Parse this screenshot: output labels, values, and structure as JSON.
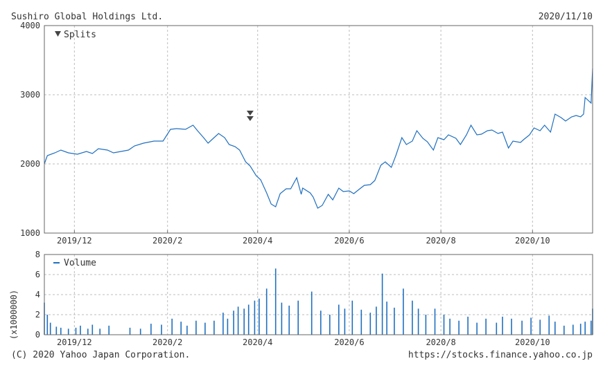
{
  "header": {
    "company": "Sushiro Global Holdings Ltd.",
    "date": "2020/11/10"
  },
  "footer": {
    "copyright": "(C) 2020 Yahoo Japan Corporation.",
    "url": "https://stocks.finance.yahoo.co.jp"
  },
  "colors": {
    "line": "#1f6fbf",
    "volume": "#1f6fbf",
    "marker": "#444444"
  },
  "chart_data": [
    {
      "type": "line",
      "x_type": "date",
      "x_range": [
        "2019-11-11",
        "2020-11-10"
      ],
      "ylim": [
        1000,
        4000
      ],
      "yticks": [
        1000,
        2000,
        3000,
        4000
      ],
      "xticks": [
        {
          "date": "2019-12-01",
          "label": "2019/12"
        },
        {
          "date": "2020-02-01",
          "label": "2020/2"
        },
        {
          "date": "2020-04-01",
          "label": "2020/4"
        },
        {
          "date": "2020-06-01",
          "label": "2020/6"
        },
        {
          "date": "2020-08-01",
          "label": "2020/8"
        },
        {
          "date": "2020-10-01",
          "label": "2020/10"
        }
      ],
      "grid": true,
      "legend": {
        "label": "Splits",
        "placement": "top-left",
        "symbol": "down-triangle"
      },
      "splits": [
        "2020-03-27"
      ],
      "series": [
        {
          "points": [
            [
              "2019-11-11",
              2000
            ],
            [
              "2019-11-13",
              2120
            ],
            [
              "2019-11-18",
              2160
            ],
            [
              "2019-11-22",
              2200
            ],
            [
              "2019-11-27",
              2160
            ],
            [
              "2019-12-03",
              2140
            ],
            [
              "2019-12-09",
              2180
            ],
            [
              "2019-12-13",
              2150
            ],
            [
              "2019-12-17",
              2220
            ],
            [
              "2019-12-23",
              2200
            ],
            [
              "2019-12-27",
              2160
            ],
            [
              "2020-01-06",
              2200
            ],
            [
              "2020-01-10",
              2260
            ],
            [
              "2020-01-16",
              2300
            ],
            [
              "2020-01-23",
              2330
            ],
            [
              "2020-01-29",
              2330
            ],
            [
              "2020-02-03",
              2500
            ],
            [
              "2020-02-07",
              2510
            ],
            [
              "2020-02-13",
              2500
            ],
            [
              "2020-02-18",
              2560
            ],
            [
              "2020-02-21",
              2480
            ],
            [
              "2020-02-25",
              2380
            ],
            [
              "2020-02-28",
              2300
            ],
            [
              "2020-03-03",
              2380
            ],
            [
              "2020-03-06",
              2440
            ],
            [
              "2020-03-10",
              2380
            ],
            [
              "2020-03-13",
              2280
            ],
            [
              "2020-03-17",
              2250
            ],
            [
              "2020-03-20",
              2200
            ],
            [
              "2020-03-24",
              2030
            ],
            [
              "2020-03-27",
              1970
            ],
            [
              "2020-03-31",
              1830
            ],
            [
              "2020-04-03",
              1770
            ],
            [
              "2020-04-07",
              1580
            ],
            [
              "2020-04-10",
              1420
            ],
            [
              "2020-04-13",
              1380
            ],
            [
              "2020-04-16",
              1570
            ],
            [
              "2020-04-20",
              1640
            ],
            [
              "2020-04-23",
              1640
            ],
            [
              "2020-04-27",
              1800
            ],
            [
              "2020-04-30",
              1560
            ],
            [
              "2020-05-01",
              1650
            ],
            [
              "2020-05-06",
              1580
            ],
            [
              "2020-05-08",
              1520
            ],
            [
              "2020-05-11",
              1360
            ],
            [
              "2020-05-14",
              1400
            ],
            [
              "2020-05-18",
              1560
            ],
            [
              "2020-05-21",
              1480
            ],
            [
              "2020-05-25",
              1650
            ],
            [
              "2020-05-28",
              1600
            ],
            [
              "2020-06-01",
              1610
            ],
            [
              "2020-06-04",
              1570
            ],
            [
              "2020-06-08",
              1640
            ],
            [
              "2020-06-11",
              1690
            ],
            [
              "2020-06-15",
              1700
            ],
            [
              "2020-06-18",
              1760
            ],
            [
              "2020-06-22",
              1980
            ],
            [
              "2020-06-25",
              2030
            ],
            [
              "2020-06-29",
              1950
            ],
            [
              "2020-07-02",
              2120
            ],
            [
              "2020-07-06",
              2380
            ],
            [
              "2020-07-09",
              2280
            ],
            [
              "2020-07-13",
              2330
            ],
            [
              "2020-07-16",
              2480
            ],
            [
              "2020-07-20",
              2370
            ],
            [
              "2020-07-23",
              2320
            ],
            [
              "2020-07-27",
              2200
            ],
            [
              "2020-07-30",
              2380
            ],
            [
              "2020-08-03",
              2350
            ],
            [
              "2020-08-06",
              2420
            ],
            [
              "2020-08-11",
              2370
            ],
            [
              "2020-08-14",
              2280
            ],
            [
              "2020-08-18",
              2420
            ],
            [
              "2020-08-21",
              2560
            ],
            [
              "2020-08-25",
              2420
            ],
            [
              "2020-08-28",
              2430
            ],
            [
              "2020-09-01",
              2480
            ],
            [
              "2020-09-04",
              2490
            ],
            [
              "2020-09-08",
              2440
            ],
            [
              "2020-09-11",
              2460
            ],
            [
              "2020-09-15",
              2230
            ],
            [
              "2020-09-18",
              2330
            ],
            [
              "2020-09-23",
              2310
            ],
            [
              "2020-09-25",
              2350
            ],
            [
              "2020-09-29",
              2420
            ],
            [
              "2020-10-02",
              2520
            ],
            [
              "2020-10-06",
              2480
            ],
            [
              "2020-10-09",
              2560
            ],
            [
              "2020-10-13",
              2460
            ],
            [
              "2020-10-16",
              2720
            ],
            [
              "2020-10-20",
              2670
            ],
            [
              "2020-10-23",
              2620
            ],
            [
              "2020-10-27",
              2680
            ],
            [
              "2020-10-30",
              2700
            ],
            [
              "2020-11-02",
              2680
            ],
            [
              "2020-11-04",
              2720
            ],
            [
              "2020-11-05",
              2960
            ],
            [
              "2020-11-06",
              2940
            ],
            [
              "2020-11-09",
              2880
            ],
            [
              "2020-11-10",
              3380
            ]
          ]
        }
      ]
    },
    {
      "type": "bar",
      "x_type": "date",
      "ylabel": "(x1000000)",
      "ylim": [
        0,
        8
      ],
      "yticks": [
        0,
        2,
        4,
        6,
        8
      ],
      "grid": true,
      "legend": {
        "label": "Volume",
        "placement": "top-left"
      },
      "series": [
        {
          "name": "Volume",
          "points": [
            [
              "2019-11-11",
              3.2
            ],
            [
              "2019-11-13",
              2.0
            ],
            [
              "2019-11-15",
              1.2
            ],
            [
              "2019-11-19",
              0.8
            ],
            [
              "2019-11-22",
              0.7
            ],
            [
              "2019-11-27",
              0.6
            ],
            [
              "2019-12-02",
              0.7
            ],
            [
              "2019-12-05",
              0.9
            ],
            [
              "2019-12-10",
              0.6
            ],
            [
              "2019-12-13",
              1.0
            ],
            [
              "2019-12-18",
              0.6
            ],
            [
              "2019-12-24",
              0.9
            ],
            [
              "2020-01-07",
              0.7
            ],
            [
              "2020-01-14",
              0.6
            ],
            [
              "2020-01-21",
              1.1
            ],
            [
              "2020-01-28",
              1.0
            ],
            [
              "2020-02-04",
              1.6
            ],
            [
              "2020-02-10",
              1.3
            ],
            [
              "2020-02-14",
              0.9
            ],
            [
              "2020-02-20",
              1.4
            ],
            [
              "2020-02-26",
              1.2
            ],
            [
              "2020-03-03",
              1.4
            ],
            [
              "2020-03-09",
              2.2
            ],
            [
              "2020-03-12",
              1.6
            ],
            [
              "2020-03-16",
              2.4
            ],
            [
              "2020-03-19",
              2.8
            ],
            [
              "2020-03-23",
              2.6
            ],
            [
              "2020-03-26",
              3.0
            ],
            [
              "2020-03-30",
              3.4
            ],
            [
              "2020-04-02",
              3.6
            ],
            [
              "2020-04-07",
              4.6
            ],
            [
              "2020-04-13",
              6.6
            ],
            [
              "2020-04-17",
              3.2
            ],
            [
              "2020-04-22",
              2.9
            ],
            [
              "2020-04-28",
              3.4
            ],
            [
              "2020-05-07",
              4.3
            ],
            [
              "2020-05-13",
              2.4
            ],
            [
              "2020-05-19",
              2.0
            ],
            [
              "2020-05-25",
              3.0
            ],
            [
              "2020-05-29",
              2.6
            ],
            [
              "2020-06-03",
              3.4
            ],
            [
              "2020-06-09",
              2.5
            ],
            [
              "2020-06-15",
              2.2
            ],
            [
              "2020-06-19",
              2.8
            ],
            [
              "2020-06-23",
              6.1
            ],
            [
              "2020-06-26",
              3.3
            ],
            [
              "2020-07-01",
              2.7
            ],
            [
              "2020-07-07",
              4.6
            ],
            [
              "2020-07-13",
              3.4
            ],
            [
              "2020-07-17",
              2.6
            ],
            [
              "2020-07-22",
              2.0
            ],
            [
              "2020-07-28",
              2.6
            ],
            [
              "2020-08-03",
              2.0
            ],
            [
              "2020-08-07",
              1.6
            ],
            [
              "2020-08-13",
              1.4
            ],
            [
              "2020-08-19",
              1.8
            ],
            [
              "2020-08-25",
              1.2
            ],
            [
              "2020-08-31",
              1.6
            ],
            [
              "2020-09-07",
              1.2
            ],
            [
              "2020-09-11",
              1.8
            ],
            [
              "2020-09-17",
              1.6
            ],
            [
              "2020-09-24",
              1.4
            ],
            [
              "2020-09-30",
              1.7
            ],
            [
              "2020-10-06",
              1.5
            ],
            [
              "2020-10-12",
              1.9
            ],
            [
              "2020-10-16",
              1.3
            ],
            [
              "2020-10-22",
              0.9
            ],
            [
              "2020-10-28",
              1.0
            ],
            [
              "2020-11-02",
              1.1
            ],
            [
              "2020-11-05",
              1.3
            ],
            [
              "2020-11-09",
              1.4
            ],
            [
              "2020-11-10",
              2.6
            ]
          ]
        }
      ]
    }
  ]
}
